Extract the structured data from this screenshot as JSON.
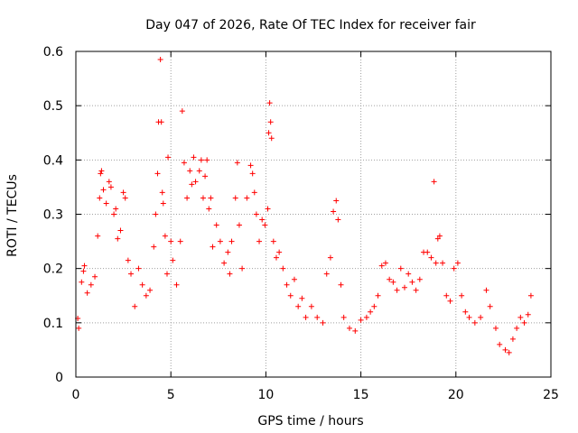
{
  "chart_data": {
    "type": "scatter",
    "title": "Day 047 of 2026, Rate Of TEC Index for receiver fair",
    "xlabel": "GPS time / hours",
    "ylabel": "ROTI / TECUs",
    "xlim": [
      0,
      25
    ],
    "ylim": [
      0,
      0.6
    ],
    "x_ticks": [
      "0",
      "5",
      "10",
      "15",
      "20",
      "25"
    ],
    "y_ticks": [
      "0",
      "0.1",
      "0.2",
      "0.3",
      "0.4",
      "0.5",
      "0.6"
    ],
    "grid": true,
    "marker": "+",
    "marker_color": "#ff0000",
    "points": [
      [
        0.1,
        0.108
      ],
      [
        0.15,
        0.09
      ],
      [
        0.3,
        0.175
      ],
      [
        0.4,
        0.195
      ],
      [
        0.45,
        0.205
      ],
      [
        0.6,
        0.155
      ],
      [
        0.8,
        0.17
      ],
      [
        1.0,
        0.185
      ],
      [
        1.15,
        0.26
      ],
      [
        1.25,
        0.33
      ],
      [
        1.3,
        0.375
      ],
      [
        1.35,
        0.38
      ],
      [
        1.45,
        0.345
      ],
      [
        1.6,
        0.32
      ],
      [
        1.75,
        0.36
      ],
      [
        1.85,
        0.35
      ],
      [
        2.0,
        0.3
      ],
      [
        2.1,
        0.31
      ],
      [
        2.2,
        0.255
      ],
      [
        2.35,
        0.27
      ],
      [
        2.5,
        0.34
      ],
      [
        2.6,
        0.33
      ],
      [
        2.75,
        0.215
      ],
      [
        2.9,
        0.19
      ],
      [
        3.1,
        0.13
      ],
      [
        3.3,
        0.2
      ],
      [
        3.5,
        0.17
      ],
      [
        3.7,
        0.15
      ],
      [
        3.9,
        0.16
      ],
      [
        4.1,
        0.24
      ],
      [
        4.2,
        0.3
      ],
      [
        4.3,
        0.375
      ],
      [
        4.35,
        0.47
      ],
      [
        4.45,
        0.585
      ],
      [
        4.5,
        0.47
      ],
      [
        4.55,
        0.34
      ],
      [
        4.6,
        0.32
      ],
      [
        4.7,
        0.26
      ],
      [
        4.8,
        0.19
      ],
      [
        4.85,
        0.405
      ],
      [
        5.0,
        0.25
      ],
      [
        5.1,
        0.215
      ],
      [
        5.3,
        0.17
      ],
      [
        5.5,
        0.25
      ],
      [
        5.6,
        0.49
      ],
      [
        5.7,
        0.395
      ],
      [
        5.85,
        0.33
      ],
      [
        6.0,
        0.38
      ],
      [
        6.1,
        0.355
      ],
      [
        6.2,
        0.405
      ],
      [
        6.3,
        0.36
      ],
      [
        6.5,
        0.38
      ],
      [
        6.6,
        0.4
      ],
      [
        6.7,
        0.33
      ],
      [
        6.8,
        0.37
      ],
      [
        6.9,
        0.4
      ],
      [
        7.0,
        0.31
      ],
      [
        7.1,
        0.33
      ],
      [
        7.2,
        0.24
      ],
      [
        7.4,
        0.28
      ],
      [
        7.6,
        0.25
      ],
      [
        7.8,
        0.21
      ],
      [
        8.0,
        0.23
      ],
      [
        8.1,
        0.19
      ],
      [
        8.2,
        0.25
      ],
      [
        8.4,
        0.33
      ],
      [
        8.5,
        0.395
      ],
      [
        8.6,
        0.28
      ],
      [
        8.75,
        0.2
      ],
      [
        9.0,
        0.33
      ],
      [
        9.2,
        0.39
      ],
      [
        9.3,
        0.375
      ],
      [
        9.4,
        0.34
      ],
      [
        9.5,
        0.3
      ],
      [
        9.65,
        0.25
      ],
      [
        9.8,
        0.29
      ],
      [
        9.95,
        0.28
      ],
      [
        10.1,
        0.31
      ],
      [
        10.15,
        0.45
      ],
      [
        10.2,
        0.505
      ],
      [
        10.25,
        0.47
      ],
      [
        10.3,
        0.44
      ],
      [
        10.4,
        0.25
      ],
      [
        10.55,
        0.22
      ],
      [
        10.7,
        0.23
      ],
      [
        10.9,
        0.2
      ],
      [
        11.1,
        0.17
      ],
      [
        11.3,
        0.15
      ],
      [
        11.5,
        0.18
      ],
      [
        11.7,
        0.13
      ],
      [
        11.9,
        0.145
      ],
      [
        12.1,
        0.11
      ],
      [
        12.4,
        0.13
      ],
      [
        12.7,
        0.11
      ],
      [
        13.0,
        0.1
      ],
      [
        13.2,
        0.19
      ],
      [
        13.4,
        0.22
      ],
      [
        13.55,
        0.305
      ],
      [
        13.7,
        0.325
      ],
      [
        13.8,
        0.29
      ],
      [
        13.95,
        0.17
      ],
      [
        14.1,
        0.11
      ],
      [
        14.4,
        0.09
      ],
      [
        14.7,
        0.085
      ],
      [
        15.0,
        0.105
      ],
      [
        15.3,
        0.11
      ],
      [
        15.5,
        0.12
      ],
      [
        15.7,
        0.13
      ],
      [
        15.9,
        0.15
      ],
      [
        16.1,
        0.205
      ],
      [
        16.3,
        0.21
      ],
      [
        16.5,
        0.18
      ],
      [
        16.7,
        0.175
      ],
      [
        16.9,
        0.16
      ],
      [
        17.1,
        0.2
      ],
      [
        17.3,
        0.165
      ],
      [
        17.5,
        0.19
      ],
      [
        17.7,
        0.175
      ],
      [
        17.9,
        0.16
      ],
      [
        18.1,
        0.18
      ],
      [
        18.3,
        0.23
      ],
      [
        18.5,
        0.23
      ],
      [
        18.7,
        0.22
      ],
      [
        18.85,
        0.36
      ],
      [
        18.95,
        0.21
      ],
      [
        19.05,
        0.255
      ],
      [
        19.15,
        0.26
      ],
      [
        19.3,
        0.21
      ],
      [
        19.5,
        0.15
      ],
      [
        19.7,
        0.14
      ],
      [
        19.9,
        0.2
      ],
      [
        20.1,
        0.21
      ],
      [
        20.3,
        0.15
      ],
      [
        20.5,
        0.12
      ],
      [
        20.7,
        0.11
      ],
      [
        21.0,
        0.1
      ],
      [
        21.3,
        0.11
      ],
      [
        21.6,
        0.16
      ],
      [
        21.8,
        0.13
      ],
      [
        22.1,
        0.09
      ],
      [
        22.3,
        0.06
      ],
      [
        22.6,
        0.05
      ],
      [
        22.8,
        0.045
      ],
      [
        23.0,
        0.07
      ],
      [
        23.2,
        0.09
      ],
      [
        23.4,
        0.11
      ],
      [
        23.6,
        0.1
      ],
      [
        23.8,
        0.115
      ],
      [
        23.95,
        0.15
      ]
    ]
  }
}
